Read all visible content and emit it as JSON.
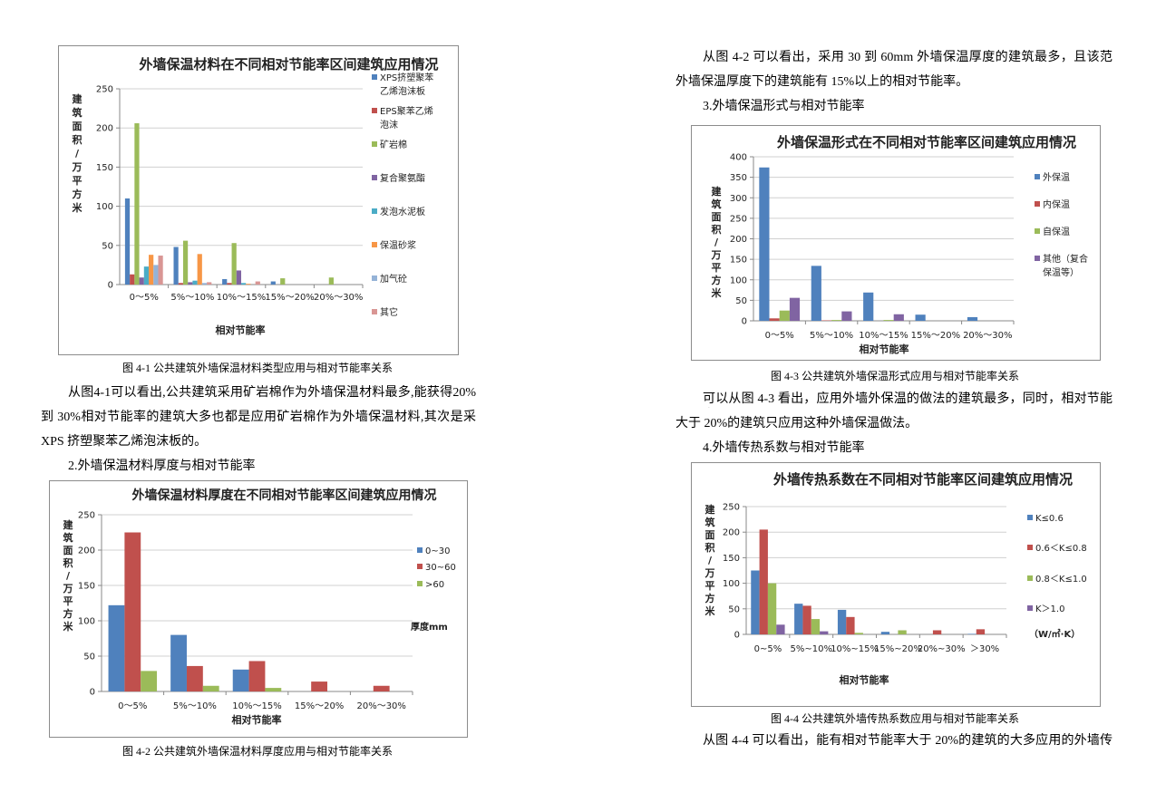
{
  "left": {
    "figure1_caption": "图 4-1  公共建筑外墙保温材料类型应用与相对节能率关系",
    "para1": [
      "从图4-1可以看出,公共建筑采用矿岩棉作为外墙保温材料最多,能获得20%",
      "到 30%相对节能率的建筑大多也都是应用矿岩棉作为外墙保温材料,其次是采用",
      "XPS 挤塑聚苯乙烯泡沫板的。"
    ],
    "heading2": "2.外墙保温材料厚度与相对节能率",
    "figure2_caption": "图 4-2  公共建筑外墙保温材料厚度应用与相对节能率关系"
  },
  "right": {
    "para1": [
      "从图 4-2 可以看出，采用 30 到 60mm 外墙保温厚度的建筑最多，且该范围",
      "外墙保温厚度下的建筑能有 15%以上的相对节能率。"
    ],
    "heading3": "3.外墙保温形式与相对节能率",
    "figure3_caption": "图 4-3  公共建筑外墙保温形式应用与相对节能率关系",
    "para2": [
      "可以从图 4-3 看出，应用外墙外保温的做法的建筑最多，同时，相对节能率",
      "大于 20%的建筑只应用这种外墙保温做法。"
    ],
    "heading4": "4.外墙传热系数与相对节能率",
    "figure4_caption": "图 4-4  公共建筑外墙传热系数应用与相对节能率关系",
    "para3": [
      "从图 4-4 可以看出，能有相对节能率大于 20%的建筑的大多应用的外墙传热"
    ]
  },
  "chart_data": [
    {
      "type": "bar",
      "title": "外墙保温材料在不同相对节能率区间建筑应用情况",
      "ylabel": "建筑面积/万平方米",
      "xlabel": "相对节能率",
      "ylim": [
        0,
        250
      ],
      "yticks": [
        0,
        50,
        100,
        150,
        200,
        250
      ],
      "grid": true,
      "legend": "right",
      "categories": [
        "0～5%",
        "5%～10%",
        "10%～15%",
        "15%～20%",
        "20%～30%"
      ],
      "series": [
        {
          "name": "XPS挤塑聚苯乙烯泡沫板",
          "color": "#4f81bd",
          "values": [
            110,
            48,
            7,
            4,
            0
          ]
        },
        {
          "name": "EPS聚苯乙烯泡沫",
          "color": "#c0504d",
          "values": [
            13,
            2,
            2,
            0,
            0
          ]
        },
        {
          "name": "矿岩棉",
          "color": "#9bbb59",
          "values": [
            206,
            56,
            53,
            8,
            9
          ]
        },
        {
          "name": "复合聚氨酯",
          "color": "#8064a2",
          "values": [
            9,
            3,
            18,
            0,
            0
          ]
        },
        {
          "name": "发泡水泥板",
          "color": "#4bacc6",
          "values": [
            23,
            5,
            2,
            0,
            0
          ]
        },
        {
          "name": "保温砂浆",
          "color": "#f79646",
          "values": [
            38,
            39,
            1,
            0,
            0
          ]
        },
        {
          "name": "加气砼",
          "color": "#95b3d7",
          "values": [
            25,
            2,
            0,
            0,
            0
          ]
        },
        {
          "name": "其它",
          "color": "#d99694",
          "values": [
            37,
            3,
            4,
            0,
            0
          ]
        }
      ]
    },
    {
      "type": "bar",
      "title": "外墙保温材料厚度在不同相对节能率区间建筑应用情况",
      "ylabel": "建筑面积/万平方米",
      "xlabel": "相对节能率",
      "legend_title": "厚度mm",
      "ylim": [
        0,
        250
      ],
      "yticks": [
        0,
        50,
        100,
        150,
        200,
        250
      ],
      "grid": true,
      "legend": "right",
      "categories": [
        "0～5%",
        "5%～10%",
        "10%～15%",
        "15%～20%",
        "20%～30%"
      ],
      "series": [
        {
          "name": "0~30",
          "color": "#4f81bd",
          "values": [
            122,
            80,
            31,
            0,
            0
          ]
        },
        {
          "name": "30~60",
          "color": "#c0504d",
          "values": [
            225,
            36,
            43,
            14,
            8
          ]
        },
        {
          "name": ">60",
          "color": "#9bbb59",
          "values": [
            29,
            8,
            5,
            0,
            0
          ]
        }
      ]
    },
    {
      "type": "bar",
      "title": "外墙保温形式在不同相对节能率区间建筑应用情况",
      "ylabel": "建筑面积/万平方米",
      "xlabel": "相对节能率",
      "ylim": [
        0,
        400
      ],
      "yticks": [
        0,
        50,
        100,
        150,
        200,
        250,
        300,
        350,
        400
      ],
      "grid": true,
      "legend": "right",
      "categories": [
        "0～5%",
        "5%～10%",
        "10%～15%",
        "15%～20%",
        "20%～30%"
      ],
      "series": [
        {
          "name": "外保温",
          "color": "#4f81bd",
          "values": [
            374,
            134,
            69,
            15,
            9
          ]
        },
        {
          "name": "内保温",
          "color": "#c0504d",
          "values": [
            6,
            1,
            0,
            0,
            0
          ]
        },
        {
          "name": "自保温",
          "color": "#9bbb59",
          "values": [
            25,
            2,
            2,
            0,
            0
          ]
        },
        {
          "name": "其他（复合保温等）",
          "color": "#8064a2",
          "values": [
            56,
            23,
            16,
            0,
            0
          ]
        }
      ]
    },
    {
      "type": "bar",
      "title": "外墙传热系数在不同相对节能率区间建筑应用情况",
      "ylabel": "建筑面积/万平方米",
      "xlabel": "相对节能率",
      "legend_title": "（W/㎡·K）",
      "ylim": [
        0,
        250
      ],
      "yticks": [
        0,
        50,
        100,
        150,
        200,
        250
      ],
      "grid": true,
      "legend": "right",
      "categories": [
        "0~5%",
        "5%~10%",
        "10%~15%",
        "15%~20%",
        "20%~30%",
        "＞30%"
      ],
      "series": [
        {
          "name": "K≤0.6",
          "color": "#4f81bd",
          "values": [
            125,
            60,
            48,
            5,
            0,
            1
          ]
        },
        {
          "name": "0.6＜K≤0.8",
          "color": "#c0504d",
          "values": [
            205,
            56,
            34,
            0,
            8,
            10
          ]
        },
        {
          "name": "0.8＜K≤1.0",
          "color": "#9bbb59",
          "values": [
            100,
            30,
            3,
            8,
            0,
            0
          ]
        },
        {
          "name": "K＞1.0",
          "color": "#8064a2",
          "values": [
            19,
            6,
            0,
            0,
            0,
            0
          ]
        }
      ]
    }
  ]
}
